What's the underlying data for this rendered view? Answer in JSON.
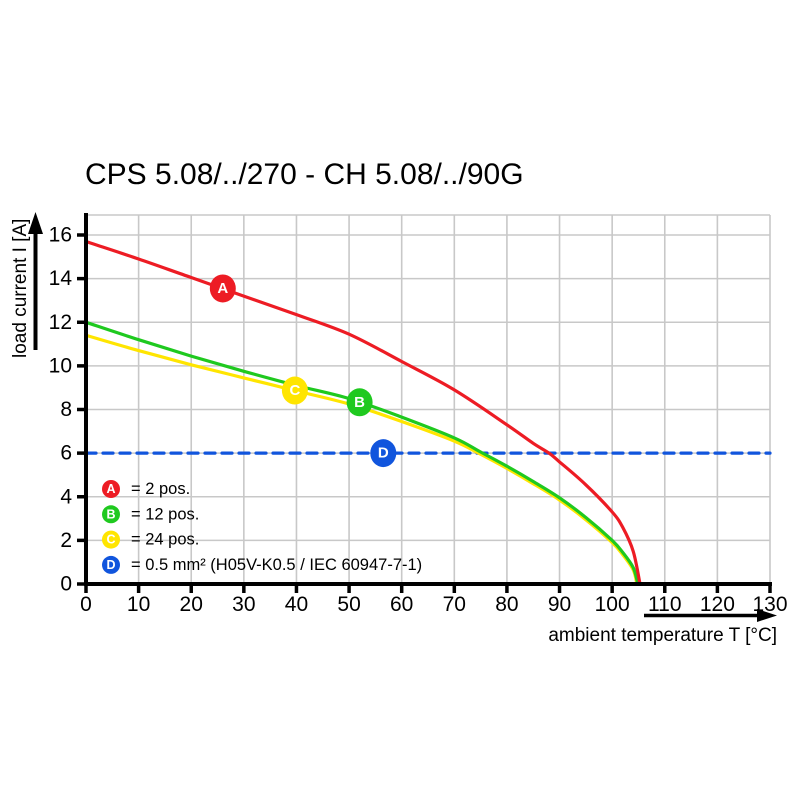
{
  "style": {
    "red": "#ED1C24",
    "green": "#1FC91F",
    "yellow": "#FFE500",
    "blue": "#1155DD",
    "grid": "#C8C8C8",
    "axis": "#000000"
  },
  "chart_data": {
    "type": "line",
    "title": "CPS 5.08/../270 - CH 5.08/../90G",
    "xlabel": "ambient temperature T [°C]",
    "ylabel": "load current I [A]",
    "xlim": [
      0,
      130
    ],
    "ylim": [
      0,
      16
    ],
    "x_ticks": [
      0,
      10,
      20,
      30,
      40,
      50,
      60,
      70,
      80,
      90,
      100,
      110,
      120,
      130
    ],
    "y_ticks": [
      0,
      2,
      4,
      6,
      8,
      10,
      12,
      14,
      16
    ],
    "grid": true,
    "legend_position": "bottom-left-inside",
    "series": [
      {
        "id": "A",
        "name": "2 pos.",
        "color": "#ED1C24",
        "dashed": false,
        "marker": {
          "letter": "A",
          "x": 26,
          "y": 13.55
        },
        "points": [
          [
            0,
            15.7
          ],
          [
            10,
            14.9
          ],
          [
            20,
            14.05
          ],
          [
            30,
            13.2
          ],
          [
            40,
            12.35
          ],
          [
            50,
            11.45
          ],
          [
            60,
            10.2
          ],
          [
            70,
            8.9
          ],
          [
            80,
            7.3
          ],
          [
            85,
            6.45
          ],
          [
            88,
            6.0
          ],
          [
            90,
            5.6
          ],
          [
            95,
            4.55
          ],
          [
            100,
            3.3
          ],
          [
            102,
            2.6
          ],
          [
            104,
            1.5
          ],
          [
            105.3,
            0
          ]
        ]
      },
      {
        "id": "B",
        "name": "12 pos.",
        "color": "#1FC91F",
        "dashed": false,
        "marker": {
          "letter": "B",
          "x": 52,
          "y": 8.33
        },
        "points": [
          [
            0,
            12.0
          ],
          [
            10,
            11.2
          ],
          [
            20,
            10.45
          ],
          [
            30,
            9.75
          ],
          [
            40,
            9.1
          ],
          [
            50,
            8.5
          ],
          [
            60,
            7.65
          ],
          [
            70,
            6.7
          ],
          [
            75,
            6.05
          ],
          [
            80,
            5.4
          ],
          [
            85,
            4.7
          ],
          [
            90,
            3.95
          ],
          [
            95,
            3.05
          ],
          [
            100,
            2.0
          ],
          [
            102,
            1.45
          ],
          [
            104,
            0.75
          ],
          [
            104.9,
            0
          ]
        ]
      },
      {
        "id": "C",
        "name": "24 pos.",
        "color": "#FFE500",
        "dashed": false,
        "marker": {
          "letter": "C",
          "x": 39.7,
          "y": 8.87
        },
        "points": [
          [
            0,
            11.4
          ],
          [
            10,
            10.7
          ],
          [
            20,
            10.05
          ],
          [
            30,
            9.45
          ],
          [
            40,
            8.85
          ],
          [
            50,
            8.25
          ],
          [
            60,
            7.45
          ],
          [
            70,
            6.55
          ],
          [
            75,
            5.95
          ],
          [
            80,
            5.3
          ],
          [
            85,
            4.6
          ],
          [
            90,
            3.85
          ],
          [
            95,
            2.95
          ],
          [
            100,
            1.9
          ],
          [
            102,
            1.35
          ],
          [
            104,
            0.65
          ],
          [
            104.7,
            0
          ]
        ]
      },
      {
        "id": "D",
        "name": "0.5 mm² limit",
        "color": "#1155DD",
        "dashed": true,
        "marker": {
          "letter": "D",
          "x": 56.5,
          "y": 6
        },
        "points": [
          [
            0,
            6
          ],
          [
            130,
            6
          ]
        ]
      }
    ]
  },
  "legend": {
    "items": [
      {
        "letter": "A",
        "color": "#ED1C24",
        "label": "= 2 pos."
      },
      {
        "letter": "B",
        "color": "#1FC91F",
        "label": "= 12 pos."
      },
      {
        "letter": "C",
        "color": "#FFE500",
        "label": "= 24 pos."
      },
      {
        "letter": "D",
        "color": "#1155DD",
        "label": "= 0.5 mm² (H05V-K0.5 / IEC 60947-7-1)"
      }
    ]
  }
}
